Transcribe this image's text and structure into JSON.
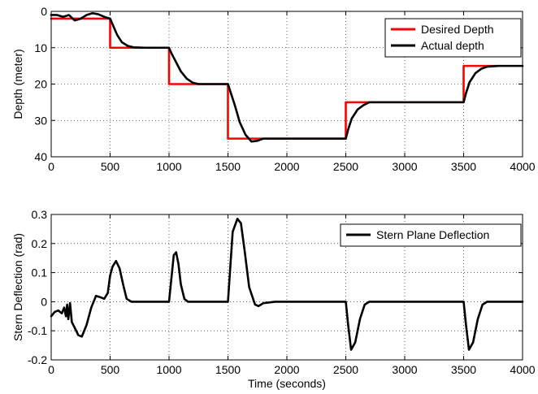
{
  "chart_data": [
    {
      "type": "line",
      "xlabel": "",
      "ylabel": "Depth (meter)",
      "xlim": [
        0,
        4000
      ],
      "ylim": [
        0,
        40
      ],
      "y_inverted": true,
      "grid": "dotted",
      "legend_placement": "top-right",
      "xticks": [
        0,
        500,
        1000,
        1500,
        2000,
        2500,
        3000,
        3500,
        4000
      ],
      "yticks": [
        0,
        10,
        20,
        30,
        40
      ],
      "series": [
        {
          "name": "Desired Depth",
          "color": "#ff0000",
          "x": [
            0,
            500,
            500,
            1000,
            1000,
            1500,
            1500,
            2500,
            2500,
            3500,
            3500,
            3800
          ],
          "y": [
            2,
            2,
            10,
            10,
            20,
            20,
            35,
            35,
            25,
            25,
            15,
            15
          ]
        },
        {
          "name": "Actual depth",
          "color": "#000000",
          "x": [
            0,
            50,
            100,
            150,
            200,
            250,
            300,
            350,
            400,
            450,
            500,
            520,
            560,
            600,
            650,
            700,
            800,
            950,
            1000,
            1020,
            1060,
            1100,
            1150,
            1200,
            1250,
            1300,
            1500,
            1520,
            1560,
            1600,
            1650,
            1700,
            1750,
            1800,
            1900,
            2000,
            2500,
            2520,
            2550,
            2600,
            2650,
            2700,
            2800,
            3000,
            3500,
            3520,
            3550,
            3600,
            3650,
            3700,
            3800,
            4000
          ],
          "y": [
            1.0,
            1.0,
            1.5,
            1.0,
            2.5,
            2.0,
            1.0,
            0.5,
            0.8,
            1.5,
            2.0,
            3.5,
            6.5,
            8.5,
            9.5,
            9.9,
            10.0,
            10.0,
            10.0,
            11.5,
            14.0,
            16.5,
            18.5,
            19.6,
            20.0,
            20.0,
            20.0,
            22.0,
            26.0,
            30.5,
            34.0,
            35.8,
            35.6,
            35.0,
            35.0,
            35.0,
            35.0,
            32.5,
            29.5,
            27.0,
            25.8,
            25.0,
            25.0,
            25.0,
            25.0,
            22.5,
            19.5,
            17.0,
            15.8,
            15.2,
            15.0,
            15.0
          ]
        }
      ]
    },
    {
      "type": "line",
      "xlabel": "Time (seconds)",
      "ylabel": "Stern Deflection (rad)",
      "xlim": [
        0,
        4000
      ],
      "ylim": [
        -0.2,
        0.3
      ],
      "grid": "dotted",
      "legend_placement": "top-right",
      "xticks": [
        0,
        500,
        1000,
        1500,
        2000,
        2500,
        3000,
        3500,
        4000
      ],
      "yticks": [
        -0.2,
        -0.1,
        0,
        0.1,
        0.2,
        0.3
      ],
      "series": [
        {
          "name": "Stern Plane Deflection",
          "color": "#000000",
          "x": [
            0,
            30,
            60,
            90,
            110,
            125,
            135,
            145,
            160,
            175,
            200,
            230,
            260,
            300,
            340,
            380,
            420,
            450,
            480,
            500,
            520,
            550,
            580,
            610,
            640,
            680,
            750,
            1000,
            1015,
            1040,
            1060,
            1080,
            1100,
            1130,
            1160,
            1200,
            1300,
            1500,
            1520,
            1540,
            1580,
            1610,
            1640,
            1680,
            1730,
            1760,
            1800,
            1900,
            2500,
            2520,
            2545,
            2580,
            2620,
            2660,
            2700,
            3000,
            3500,
            3520,
            3545,
            3580,
            3620,
            3660,
            3700,
            4000
          ],
          "y": [
            -0.05,
            -0.035,
            -0.03,
            -0.04,
            -0.02,
            -0.05,
            -0.01,
            -0.06,
            -0.005,
            -0.07,
            -0.09,
            -0.115,
            -0.12,
            -0.08,
            -0.02,
            0.02,
            0.015,
            0.01,
            0.03,
            0.09,
            0.12,
            0.14,
            0.115,
            0.06,
            0.01,
            0.0,
            0.0,
            0.0,
            0.06,
            0.16,
            0.17,
            0.13,
            0.06,
            0.01,
            0.0,
            0.0,
            0.0,
            0.0,
            0.12,
            0.24,
            0.285,
            0.27,
            0.18,
            0.05,
            -0.01,
            -0.015,
            -0.005,
            0.0,
            0.0,
            -0.08,
            -0.165,
            -0.14,
            -0.06,
            -0.01,
            0.0,
            0.0,
            0.0,
            -0.08,
            -0.165,
            -0.14,
            -0.06,
            -0.01,
            0.0,
            0.0
          ]
        }
      ]
    }
  ]
}
